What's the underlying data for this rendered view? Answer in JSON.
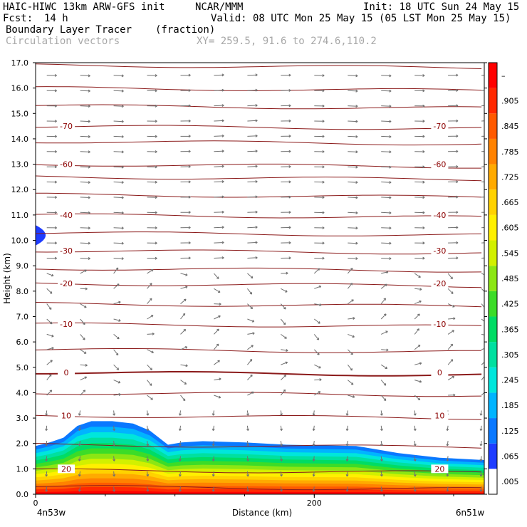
{
  "header": {
    "model": "HAIC-HIWC 13km ARW-GFS init",
    "org": "NCAR/MMM",
    "init": "Init: 18 UTC Sun 24 May 15",
    "fcst_label": "Fcst:",
    "fcst_value": "14 h",
    "valid": "Valid: 08 UTC Mon 25 May 15 (05 LST Mon 25 May 15)",
    "field": "Boundary Layer Tracer",
    "units": "(fraction)",
    "overlay": "Circulation vectors",
    "xy": "XY= 259.5, 91.6 to 274.6,110.2"
  },
  "chart_data": {
    "type": "cross-section",
    "ylabel": "Height (km)",
    "xlabel": "Distance (km)",
    "x_left_label": "4n53w",
    "x_right_label": "6n51w",
    "x_ticks": [
      0,
      200
    ],
    "xlim": [
      0,
      322
    ],
    "ylim": [
      0,
      17
    ],
    "y_ticks": [
      "0.0",
      "1.0",
      "2.0",
      "3.0",
      "4.0",
      "5.0",
      "6.0",
      "7.0",
      "8.0",
      "9.0",
      "10.0",
      "11.0",
      "12.0",
      "13.0",
      "14.0",
      "15.0",
      "16.0",
      "17.0"
    ],
    "colorbar": {
      "labels": [
        ".005",
        ".065",
        ".125",
        ".185",
        ".245",
        ".305",
        ".365",
        ".425",
        ".485",
        ".545",
        ".605",
        ".665",
        ".725",
        ".785",
        ".845",
        ".905",
        "–"
      ],
      "colors": [
        "#ffffff",
        "#1e3cff",
        "#0a78ff",
        "#00b4ff",
        "#00e6dc",
        "#00e0a0",
        "#00dc64",
        "#3cdc28",
        "#8ce614",
        "#d2f000",
        "#fff000",
        "#ffd200",
        "#ffaa00",
        "#ff8200",
        "#ff5a00",
        "#ff2800",
        "#ff0000"
      ]
    },
    "tracer_top_km": [
      [
        0,
        2.05
      ],
      [
        10,
        2.2
      ],
      [
        20,
        2.4
      ],
      [
        30,
        2.9
      ],
      [
        40,
        3.1
      ],
      [
        55,
        3.1
      ],
      [
        70,
        3.0
      ],
      [
        82,
        2.7
      ],
      [
        95,
        2.1
      ],
      [
        105,
        2.2
      ],
      [
        120,
        2.25
      ],
      [
        150,
        2.2
      ],
      [
        180,
        2.1
      ],
      [
        230,
        2.05
      ],
      [
        260,
        1.75
      ],
      [
        290,
        1.55
      ],
      [
        322,
        1.45
      ]
    ],
    "upper_tracer_patch": {
      "x": [
        0,
        12
      ],
      "y": [
        9.8,
        10.6
      ]
    },
    "temperature_contours_C": [
      {
        "label": "-70",
        "y": 14.5
      },
      {
        "label": "-60",
        "y": 13.0
      },
      {
        "label": "-40",
        "y": 11.0
      },
      {
        "label": "-30",
        "y": 9.6
      },
      {
        "label": "-20",
        "y": 8.3
      },
      {
        "label": "-10",
        "y": 6.7
      },
      {
        "label": "0",
        "y": 4.8
      },
      {
        "label": "10",
        "y": 3.1
      },
      {
        "label": "20",
        "y": 1.0
      }
    ],
    "contour_levels_km": [
      0.3,
      0.95,
      1.95,
      3.1,
      4.0,
      4.8,
      5.7,
      6.7,
      7.5,
      8.3,
      8.9,
      9.6,
      10.3,
      11.0,
      11.8,
      12.5,
      13.0,
      13.9,
      14.5,
      15.3,
      16.0,
      16.9
    ]
  }
}
